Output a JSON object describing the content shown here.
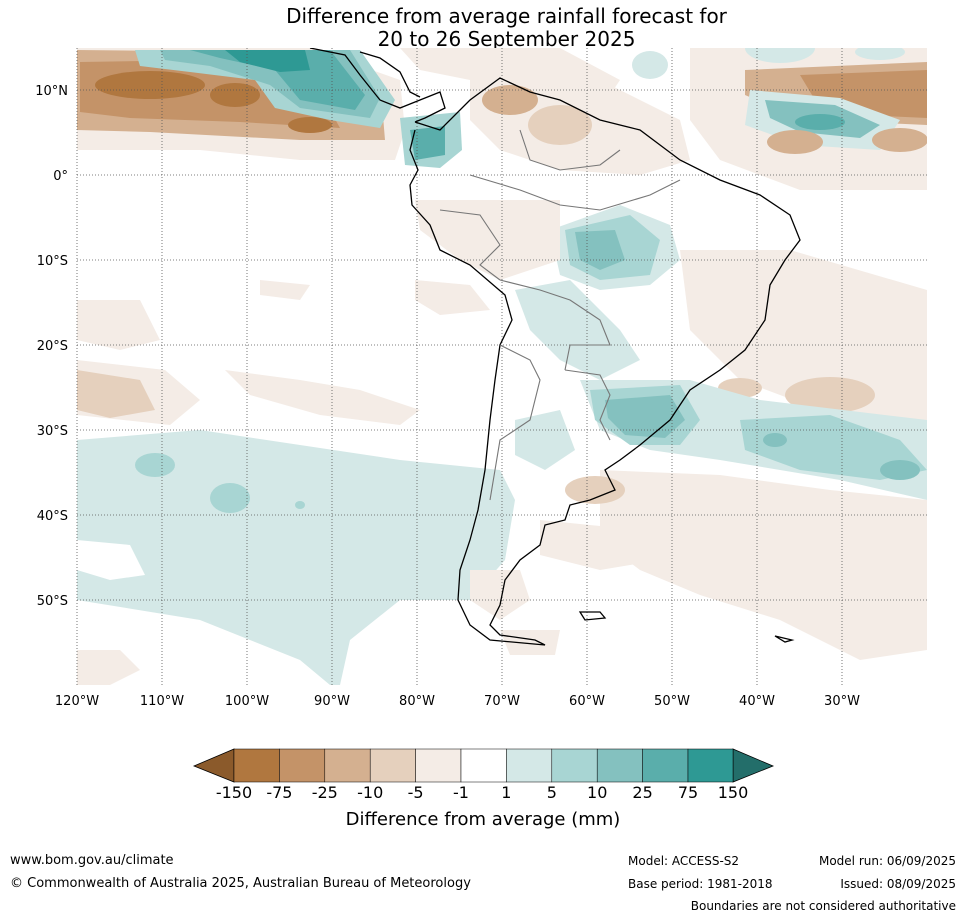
{
  "title": {
    "line1": "Difference from average rainfall forecast for",
    "line2": "20 to 26 September 2025"
  },
  "map": {
    "lat_labels": [
      "10°N",
      "0°",
      "10°S",
      "20°S",
      "30°S",
      "40°S",
      "50°S"
    ],
    "lon_labels": [
      "120°W",
      "110°W",
      "100°W",
      "90°W",
      "80°W",
      "70°W",
      "60°W",
      "50°W",
      "40°W",
      "30°W"
    ]
  },
  "colorbar": {
    "title": "Difference from average (mm)",
    "tick_labels": [
      "-150",
      "-75",
      "-25",
      "-10",
      "-5",
      "-1",
      "1",
      "5",
      "10",
      "25",
      "75",
      "150"
    ],
    "colors": [
      "#8b5a2b",
      "#b0773f",
      "#c49368",
      "#d4b090",
      "#e5d0bd",
      "#f4ece6",
      "#ffffff",
      "#d4e8e7",
      "#a8d5d3",
      "#84c1bf",
      "#5aaeab",
      "#2e9994",
      "#236e6a"
    ]
  },
  "footer": {
    "website": "www.bom.gov.au/climate",
    "copyright": "© Commonwealth of Australia 2025, Australian Bureau of Meteorology",
    "model": "Model: ACCESS-S2",
    "base_period": "Base period: 1981-2018",
    "model_run": "Model run: 06/09/2025",
    "issued": "Issued: 08/09/2025",
    "boundaries": "Boundaries are not considered authoritative"
  }
}
